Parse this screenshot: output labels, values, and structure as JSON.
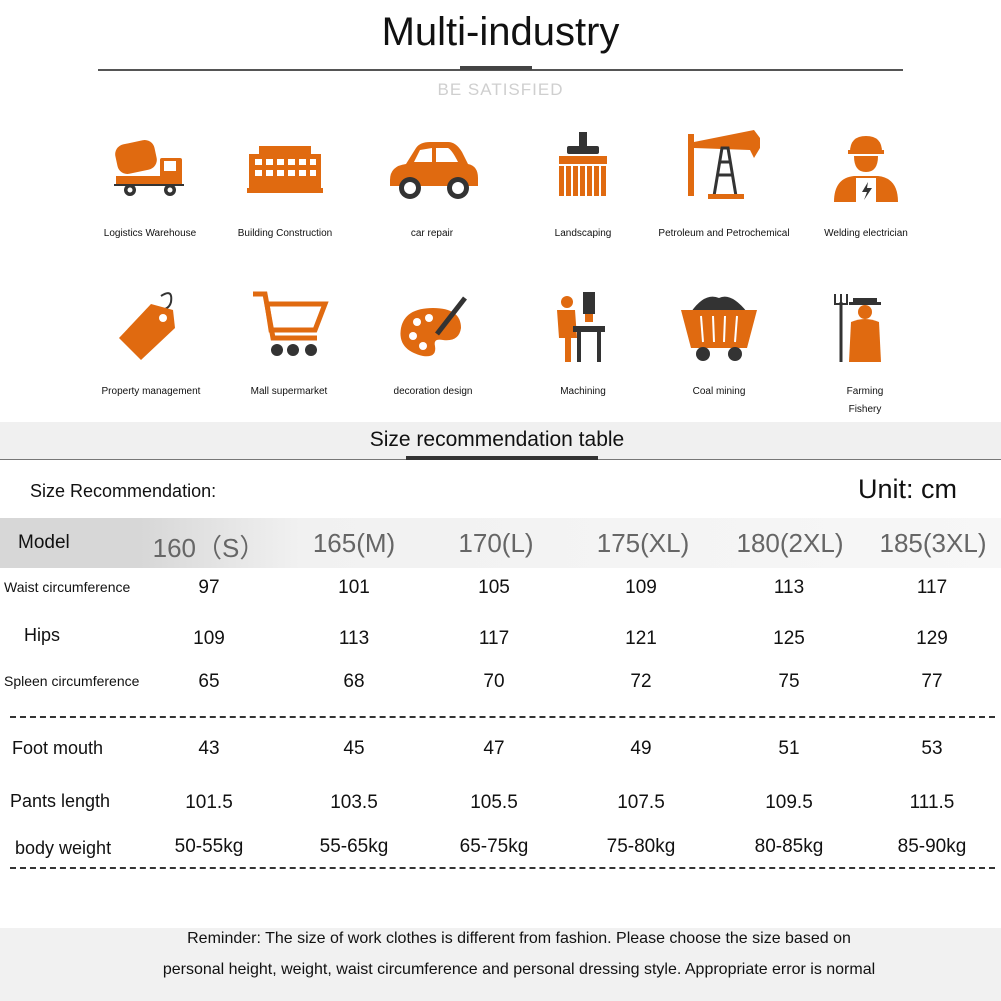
{
  "header": {
    "title": "Multi-industry",
    "subtitle": "BE SATISFIED"
  },
  "industries": [
    {
      "label": "Logistics Warehouse",
      "icon": "cement-truck-icon"
    },
    {
      "label": "Building Construction",
      "icon": "building-icon"
    },
    {
      "label": "car repair",
      "icon": "car-icon"
    },
    {
      "label": "Landscaping",
      "icon": "brush-icon"
    },
    {
      "label": "Petroleum and Petrochemical",
      "icon": "oil-pump-icon"
    },
    {
      "label": "Welding electrician",
      "icon": "worker-icon"
    },
    {
      "label": "Property management",
      "icon": "price-tag-icon"
    },
    {
      "label": "Mall supermarket",
      "icon": "shopping-cart-icon"
    },
    {
      "label": "decoration design",
      "icon": "paint-palette-icon"
    },
    {
      "label": "Machining",
      "icon": "drill-press-icon"
    },
    {
      "label": "Coal mining",
      "icon": "mine-cart-icon"
    },
    {
      "label": "Farming",
      "label2": "Fishery",
      "icon": "farmer-icon"
    }
  ],
  "size_table": {
    "heading": "Size recommendation table",
    "rec_label": "Size Recommendation:",
    "unit": "Unit: cm",
    "model_label": "Model",
    "sizes": [
      "160（S）",
      "165(M)",
      "170(L)",
      "175(XL)",
      "180(2XL)",
      "185(3XL)"
    ],
    "rows": [
      {
        "label": "Waist circumference",
        "values": [
          "97",
          "101",
          "105",
          "109",
          "113",
          "117"
        ]
      },
      {
        "label": "Hips",
        "values": [
          "109",
          "113",
          "117",
          "121",
          "125",
          "129"
        ]
      },
      {
        "label": "Spleen circumference",
        "values": [
          "65",
          "68",
          "70",
          "72",
          "75",
          "77"
        ]
      },
      {
        "label": "Foot mouth",
        "values": [
          "43",
          "45",
          "47",
          "49",
          "51",
          "53"
        ]
      },
      {
        "label": "Pants length",
        "values": [
          "101.5",
          "103.5",
          "105.5",
          "107.5",
          "109.5",
          "111.5"
        ]
      },
      {
        "label": "body weight",
        "values": [
          "50-55kg",
          "55-65kg",
          "65-75kg",
          "75-80kg",
          "80-85kg",
          "85-90kg"
        ]
      }
    ]
  },
  "reminder": {
    "line1": "Reminder: The size of work clothes is different from fashion. Please choose the size based on",
    "line2": "personal height, weight, waist circumference and personal dressing style. Appropriate error is normal"
  },
  "colors": {
    "icon_orange": "#e06a10",
    "icon_dark": "#333333"
  }
}
